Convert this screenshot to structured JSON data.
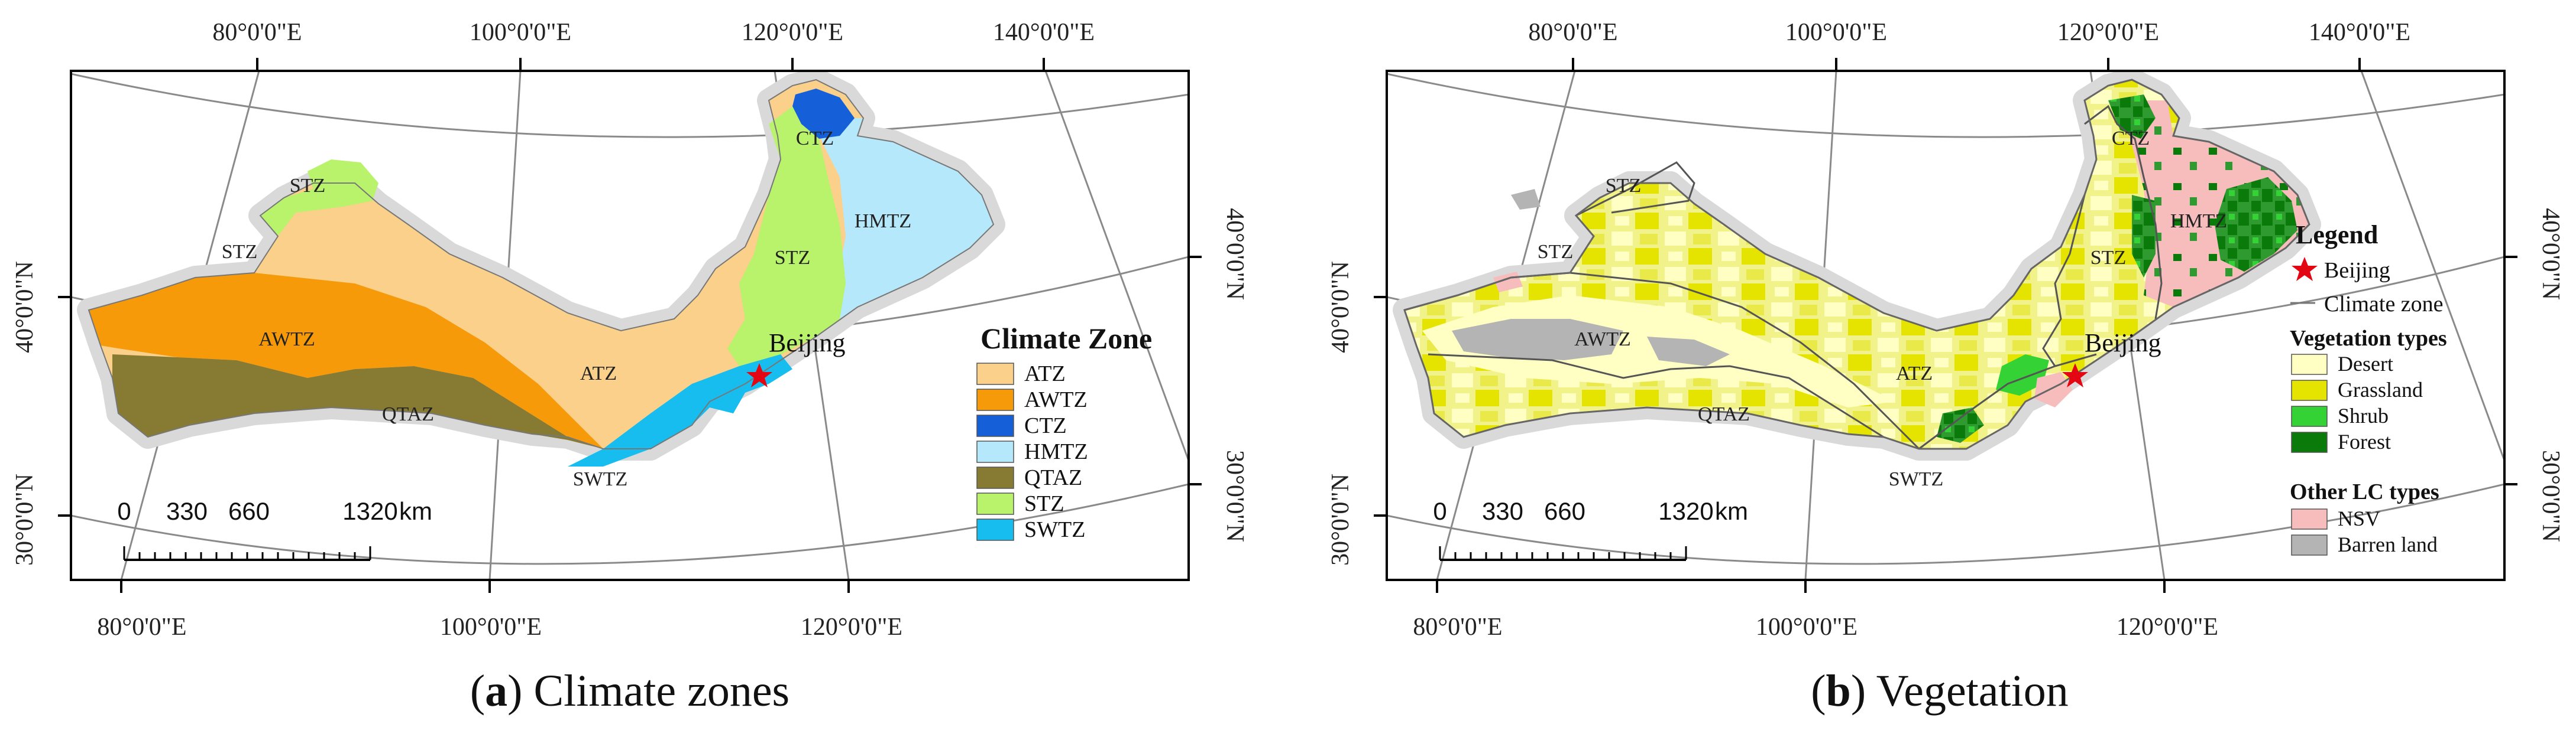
{
  "panels": [
    {
      "caption_letter": "a",
      "caption_text": " Climate zones",
      "axes": {
        "top_lon": [
          "80°0'0\"E",
          "100°0'0\"E",
          "120°0'0\"E",
          "140°0'0\"E"
        ],
        "bottom_lon": [
          "80°0'0\"E",
          "100°0'0\"E",
          "120°0'0\"E"
        ],
        "left_lat": [
          "40°0'0\"N",
          "30°0'0\"N"
        ],
        "right_lat": [
          "40°0'0\"N",
          "30°0'0\"N"
        ]
      },
      "zone_labels": [
        "STZ",
        "STZ",
        "AWTZ",
        "QTAZ",
        "ATZ",
        "SWTZ",
        "STZ",
        "CTZ",
        "HMTZ"
      ],
      "beijing_label": "Beijing",
      "scale_bar": {
        "ticks": [
          "0",
          "330",
          "660",
          "1320"
        ],
        "unit": "km"
      },
      "legend": {
        "title": "Climate Zone",
        "items": [
          {
            "label": "ATZ",
            "color": "#FAD08A"
          },
          {
            "label": "AWTZ",
            "color": "#F79A0A"
          },
          {
            "label": "CTZ",
            "color": "#1560D9"
          },
          {
            "label": "HMTZ",
            "color": "#B5E8FA"
          },
          {
            "label": "QTAZ",
            "color": "#877B34"
          },
          {
            "label": "STZ",
            "color": "#B9F26B"
          },
          {
            "label": "SWTZ",
            "color": "#17BDEE"
          }
        ]
      }
    },
    {
      "caption_letter": "b",
      "caption_text": " Vegetation",
      "axes": {
        "top_lon": [
          "80°0'0\"E",
          "100°0'0\"E",
          "120°0'0\"E",
          "140°0'0\"E"
        ],
        "bottom_lon": [
          "80°0'0\"E",
          "100°0'0\"E",
          "120°0'0\"E"
        ],
        "left_lat": [
          "40°0'0\"N",
          "30°0'0\"N"
        ],
        "right_lat": [
          "40°0'0\"N",
          "30°0'0\"N"
        ]
      },
      "zone_labels": [
        "STZ",
        "STZ",
        "AWTZ",
        "QTAZ",
        "ATZ",
        "SWTZ",
        "STZ",
        "CTZ",
        "HMTZ"
      ],
      "beijing_label": "Beijing",
      "scale_bar": {
        "ticks": [
          "0",
          "330",
          "660",
          "1320"
        ],
        "unit": "km"
      },
      "legend": {
        "title": "Legend",
        "beijing": "Beijing",
        "climate_zone": "Climate zone",
        "veg_title": "Vegetation types",
        "veg_items": [
          {
            "label": "Desert",
            "color": "#FFFFC4"
          },
          {
            "label": "Grassland",
            "color": "#E4E400"
          },
          {
            "label": "Shrub",
            "color": "#34D234"
          },
          {
            "label": "Forest",
            "color": "#0A7A0A"
          }
        ],
        "other_title": "Other LC types",
        "other_items": [
          {
            "label": "NSV",
            "color": "#F7BDBD"
          },
          {
            "label": "Barren land",
            "color": "#B4B4B4"
          }
        ]
      }
    }
  ]
}
